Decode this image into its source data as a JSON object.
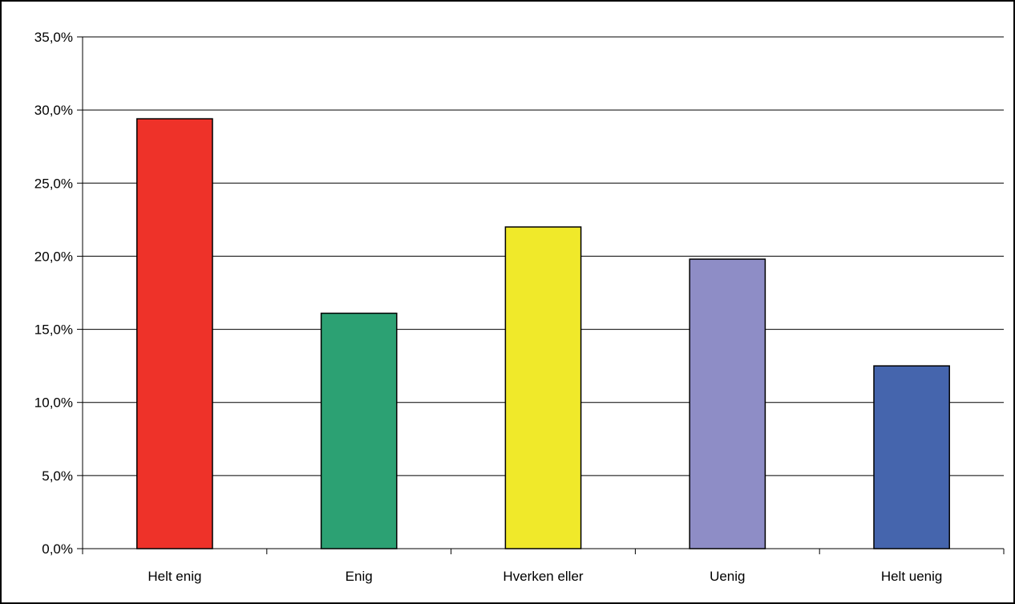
{
  "chart_data": {
    "type": "bar",
    "categories": [
      "Helt enig",
      "Enig",
      "Hverken eller",
      "Uenig",
      "Helt uenig"
    ],
    "values": [
      29.4,
      16.1,
      22.0,
      19.8,
      12.5
    ],
    "colors": [
      "#ee3229",
      "#2ca173",
      "#f0e92a",
      "#8e8dc6",
      "#4565ad"
    ],
    "ylim": [
      0,
      35
    ],
    "yticks": [
      0,
      5,
      10,
      15,
      20,
      25,
      30,
      35
    ],
    "ytick_labels": [
      "0,0%",
      "5,0%",
      "10,0%",
      "15,0%",
      "20,0%",
      "25,0%",
      "30,0%",
      "35,0%"
    ],
    "grid": true,
    "legend": "none",
    "title": "",
    "xlabel": "",
    "ylabel": ""
  }
}
